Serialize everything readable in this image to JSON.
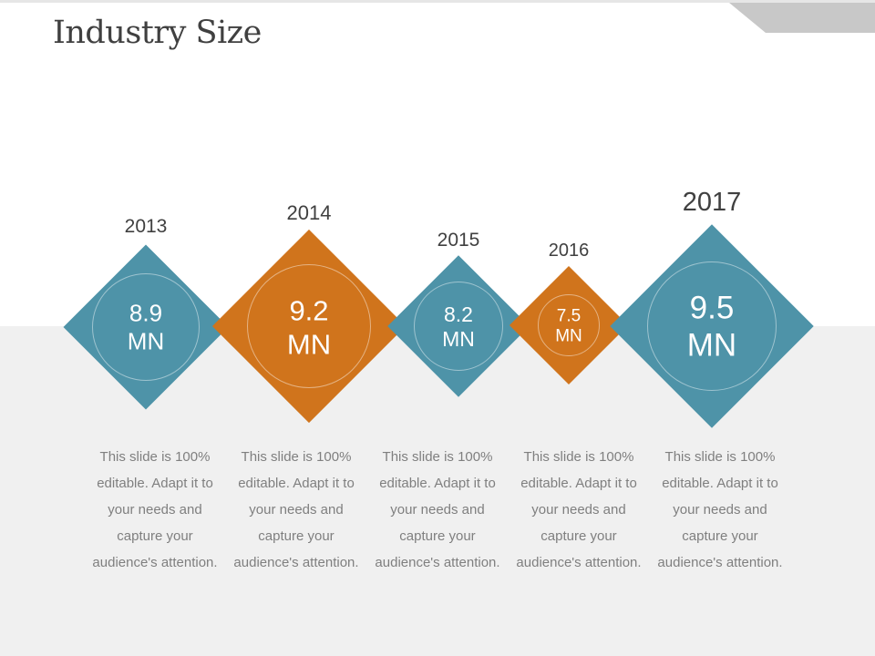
{
  "slide": {
    "title": "Industry Size"
  },
  "colors": {
    "teal": "#4e93a8",
    "orange": "#d0741c",
    "band": "#f0f0f0"
  },
  "items": [
    {
      "year": "2013",
      "value": "8.9",
      "unit": "MN",
      "color": "teal",
      "description": "This slide is 100% editable. Adapt it to your needs and capture your audience's attention."
    },
    {
      "year": "2014",
      "value": "9.2",
      "unit": "MN",
      "color": "orange",
      "description": "This slide is 100% editable. Adapt it to your needs and capture your audience's attention."
    },
    {
      "year": "2015",
      "value": "8.2",
      "unit": "MN",
      "color": "teal",
      "description": "This slide is 100% editable. Adapt it to your needs and capture your audience's attention."
    },
    {
      "year": "2016",
      "value": "7.5",
      "unit": "MN",
      "color": "orange",
      "description": "This slide is 100% editable. Adapt it to your needs and capture your audience's attention."
    },
    {
      "year": "2017",
      "value": "9.5",
      "unit": "MN",
      "color": "teal",
      "description": "This slide is 100% editable. Adapt it to your needs and capture your audience's attention."
    }
  ]
}
